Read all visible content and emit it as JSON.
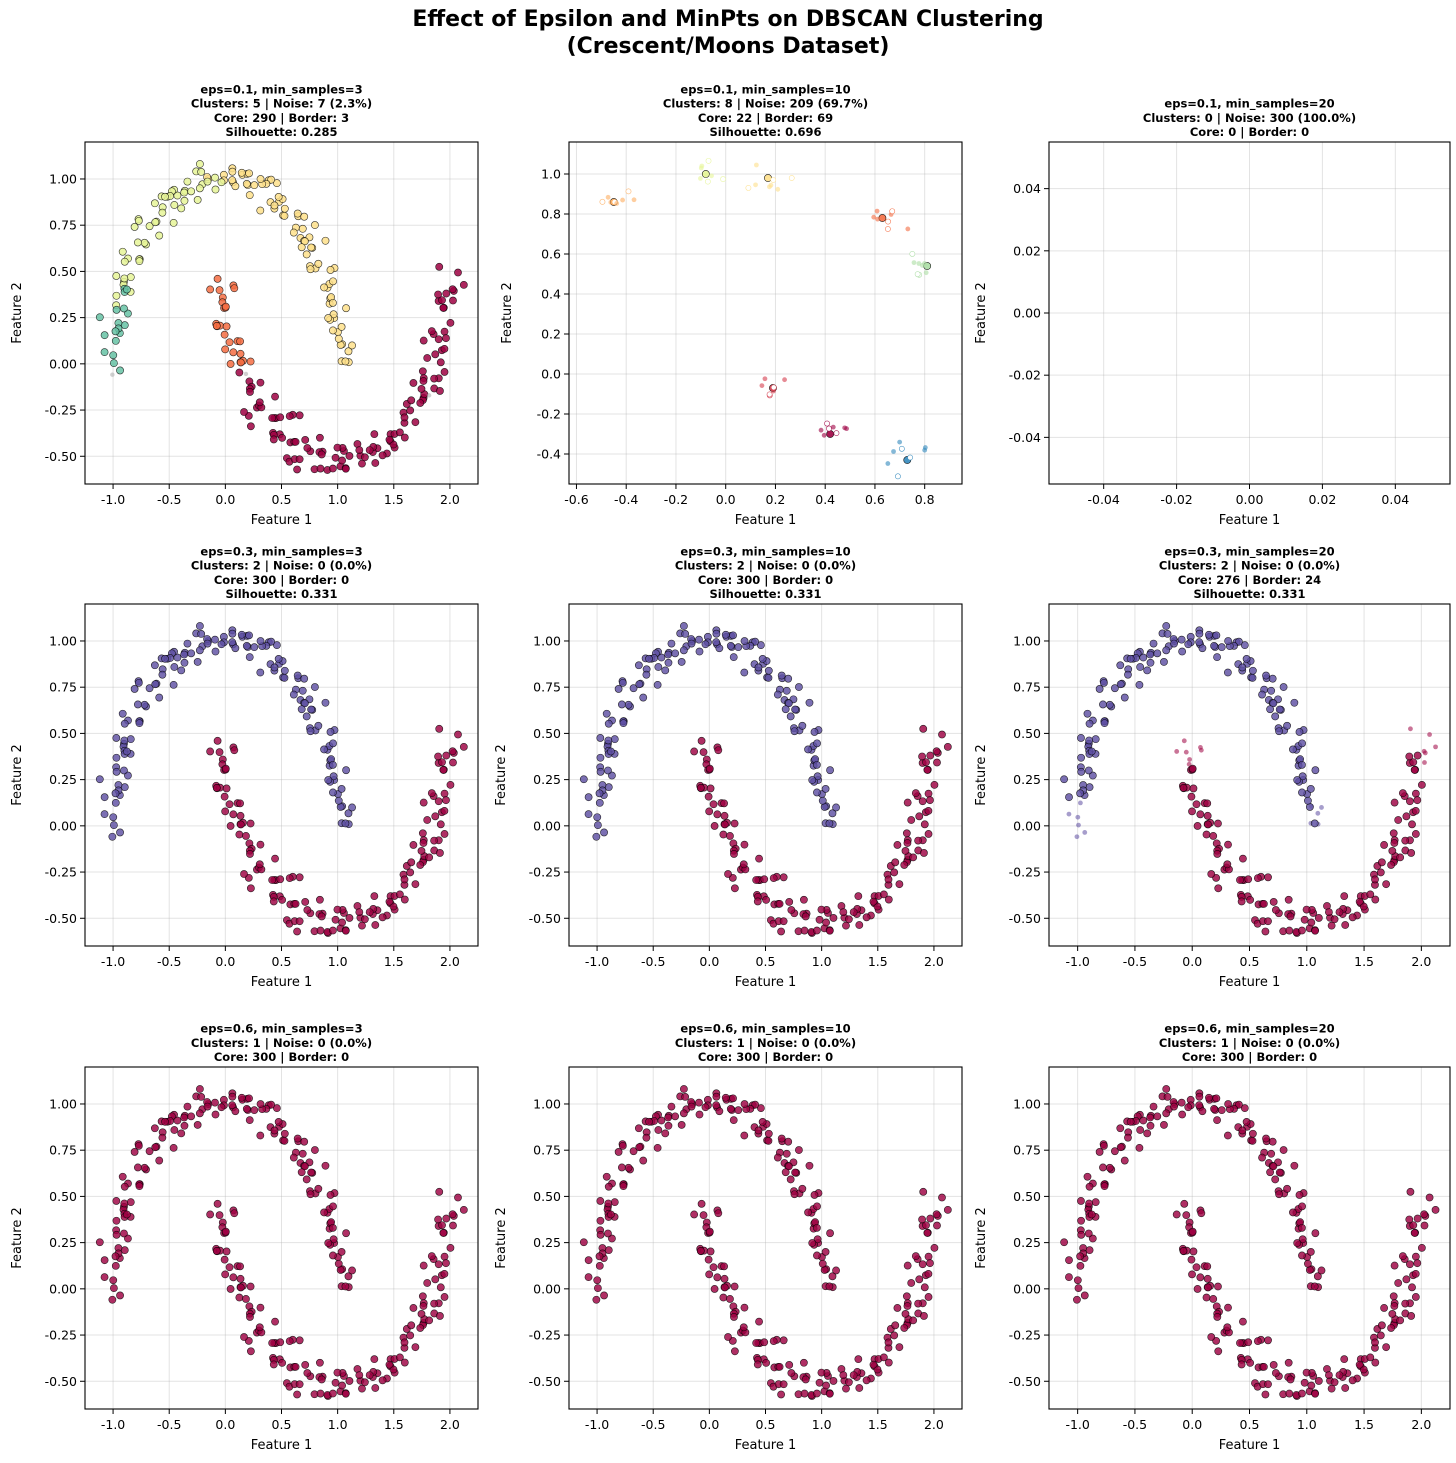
{
  "figure": {
    "title_lines": [
      "Effect of Epsilon and MinPts on DBSCAN Clustering",
      "(Crescent/Moons Dataset)"
    ]
  },
  "colors": {
    "two_cluster_upper": "#5e4fa2",
    "two_cluster_lower": "#9e0142",
    "single_cluster": "#9e0142",
    "five_cluster_palette": [
      "#9e0142",
      "#f46d43",
      "#fee08b",
      "#e6f598",
      "#66c2a5"
    ],
    "eight_cluster_palette": [
      "#9e0142",
      "#d53e4f",
      "#fdae61",
      "#fee08b",
      "#e6f598",
      "#abdda4",
      "#66c2a5",
      "#3288bd"
    ]
  },
  "chart_data": [
    {
      "type": "scatter",
      "title_lines": [
        "eps=0.1, min_samples=3",
        "Clusters: 5 | Noise: 7 (2.3%)",
        "Core: 290 | Border: 3",
        "Silhouette: 0.285"
      ],
      "eps": 0.1,
      "min_samples": 3,
      "clusters": 5,
      "noise": 7,
      "noise_pct": 2.3,
      "core": 290,
      "border": 3,
      "silhouette": 0.285,
      "xlabel": "Feature 1",
      "ylabel": "Feature 2",
      "xlim": [
        -1.25,
        2.25
      ],
      "ylim": [
        -0.65,
        1.2
      ],
      "xticks": [
        "-1.0",
        "-0.5",
        "0.0",
        "0.5",
        "1.0",
        "1.5",
        "2.0"
      ],
      "yticks": [
        "-0.50",
        "-0.25",
        "0.00",
        "0.25",
        "0.50",
        "0.75",
        "1.00"
      ],
      "mode": "full"
    },
    {
      "type": "scatter",
      "title_lines": [
        "eps=0.1, min_samples=10",
        "Clusters: 8 | Noise: 209 (69.7%)",
        "Core: 22 | Border: 69",
        "Silhouette: 0.696"
      ],
      "eps": 0.1,
      "min_samples": 10,
      "clusters": 8,
      "noise": 209,
      "noise_pct": 69.7,
      "core": 22,
      "border": 69,
      "silhouette": 0.696,
      "xlabel": "Feature 1",
      "ylabel": "Feature 2",
      "xlim": [
        -0.63,
        0.95
      ],
      "ylim": [
        -0.55,
        1.16
      ],
      "xticks": [
        "-0.6",
        "-0.4",
        "-0.2",
        "0.0",
        "0.2",
        "0.4",
        "0.6",
        "0.8"
      ],
      "yticks": [
        "-0.4",
        "-0.2",
        "0.0",
        "0.2",
        "0.4",
        "0.6",
        "0.8",
        "1.0"
      ],
      "mode": "clusters8"
    },
    {
      "type": "scatter",
      "title_lines": [
        "eps=0.1, min_samples=20",
        "Clusters: 0 | Noise: 300 (100.0%)",
        "Core: 0 | Border: 0"
      ],
      "eps": 0.1,
      "min_samples": 20,
      "clusters": 0,
      "noise": 300,
      "noise_pct": 100.0,
      "core": 0,
      "border": 0,
      "xlabel": "Feature 1",
      "ylabel": "Feature 2",
      "xlim": [
        -0.055,
        0.055
      ],
      "ylim": [
        -0.055,
        0.055
      ],
      "xticks": [
        "-0.04",
        "-0.02",
        "0.00",
        "0.02",
        "0.04"
      ],
      "yticks": [
        "-0.04",
        "-0.02",
        "0.00",
        "0.02",
        "0.04"
      ],
      "mode": "empty"
    },
    {
      "type": "scatter",
      "title_lines": [
        "eps=0.3, min_samples=3",
        "Clusters: 2 | Noise: 0 (0.0%)",
        "Core: 300 | Border: 0",
        "Silhouette: 0.331"
      ],
      "eps": 0.3,
      "min_samples": 3,
      "clusters": 2,
      "noise": 0,
      "noise_pct": 0.0,
      "core": 300,
      "border": 0,
      "silhouette": 0.331,
      "xlabel": "Feature 1",
      "ylabel": "Feature 2",
      "xlim": [
        -1.25,
        2.25
      ],
      "ylim": [
        -0.65,
        1.2
      ],
      "xticks": [
        "-1.0",
        "-0.5",
        "0.0",
        "0.5",
        "1.0",
        "1.5",
        "2.0"
      ],
      "yticks": [
        "-0.50",
        "-0.25",
        "0.00",
        "0.25",
        "0.50",
        "0.75",
        "1.00"
      ],
      "mode": "two"
    },
    {
      "type": "scatter",
      "title_lines": [
        "eps=0.3, min_samples=10",
        "Clusters: 2 | Noise: 0 (0.0%)",
        "Core: 300 | Border: 0",
        "Silhouette: 0.331"
      ],
      "eps": 0.3,
      "min_samples": 10,
      "clusters": 2,
      "noise": 0,
      "noise_pct": 0.0,
      "core": 300,
      "border": 0,
      "silhouette": 0.331,
      "xlabel": "Feature 1",
      "ylabel": "Feature 2",
      "xlim": [
        -1.25,
        2.25
      ],
      "ylim": [
        -0.65,
        1.2
      ],
      "xticks": [
        "-1.0",
        "-0.5",
        "0.0",
        "0.5",
        "1.0",
        "1.5",
        "2.0"
      ],
      "yticks": [
        "-0.50",
        "-0.25",
        "0.00",
        "0.25",
        "0.50",
        "0.75",
        "1.00"
      ],
      "mode": "two"
    },
    {
      "type": "scatter",
      "title_lines": [
        "eps=0.3, min_samples=20",
        "Clusters: 2 | Noise: 0 (0.0%)",
        "Core: 276 | Border: 24",
        "Silhouette: 0.331"
      ],
      "eps": 0.3,
      "min_samples": 20,
      "clusters": 2,
      "noise": 0,
      "noise_pct": 0.0,
      "core": 276,
      "border": 24,
      "silhouette": 0.331,
      "xlabel": "Feature 1",
      "ylabel": "Feature 2",
      "xlim": [
        -1.25,
        2.25
      ],
      "ylim": [
        -0.65,
        1.2
      ],
      "xticks": [
        "-1.0",
        "-0.5",
        "0.0",
        "0.5",
        "1.0",
        "1.5",
        "2.0"
      ],
      "yticks": [
        "-0.50",
        "-0.25",
        "0.00",
        "0.25",
        "0.50",
        "0.75",
        "1.00"
      ],
      "mode": "two_border"
    },
    {
      "type": "scatter",
      "title_lines": [
        "eps=0.6, min_samples=3",
        "Clusters: 1 | Noise: 0 (0.0%)",
        "Core: 300 | Border: 0"
      ],
      "eps": 0.6,
      "min_samples": 3,
      "clusters": 1,
      "noise": 0,
      "noise_pct": 0.0,
      "core": 300,
      "border": 0,
      "xlabel": "Feature 1",
      "ylabel": "Feature 2",
      "xlim": [
        -1.25,
        2.25
      ],
      "ylim": [
        -0.65,
        1.2
      ],
      "xticks": [
        "-1.0",
        "-0.5",
        "0.0",
        "0.5",
        "1.0",
        "1.5",
        "2.0"
      ],
      "yticks": [
        "-0.50",
        "-0.25",
        "0.00",
        "0.25",
        "0.50",
        "0.75",
        "1.00"
      ],
      "mode": "one"
    },
    {
      "type": "scatter",
      "title_lines": [
        "eps=0.6, min_samples=10",
        "Clusters: 1 | Noise: 0 (0.0%)",
        "Core: 300 | Border: 0"
      ],
      "eps": 0.6,
      "min_samples": 10,
      "clusters": 1,
      "noise": 0,
      "noise_pct": 0.0,
      "core": 300,
      "border": 0,
      "xlabel": "Feature 1",
      "ylabel": "Feature 2",
      "xlim": [
        -1.25,
        2.25
      ],
      "ylim": [
        -0.65,
        1.2
      ],
      "xticks": [
        "-1.0",
        "-0.5",
        "0.0",
        "0.5",
        "1.0",
        "1.5",
        "2.0"
      ],
      "yticks": [
        "-0.50",
        "-0.25",
        "0.00",
        "0.25",
        "0.50",
        "0.75",
        "1.00"
      ],
      "mode": "one"
    },
    {
      "type": "scatter",
      "title_lines": [
        "eps=0.6, min_samples=20",
        "Clusters: 1 | Noise: 0 (0.0%)",
        "Core: 300 | Border: 0"
      ],
      "eps": 0.6,
      "min_samples": 20,
      "clusters": 1,
      "noise": 0,
      "noise_pct": 0.0,
      "core": 300,
      "border": 0,
      "xlabel": "Feature 1",
      "ylabel": "Feature 2",
      "xlim": [
        -1.25,
        2.25
      ],
      "ylim": [
        -0.65,
        1.2
      ],
      "xticks": [
        "-1.0",
        "-0.5",
        "0.0",
        "0.5",
        "1.0",
        "1.5",
        "2.0"
      ],
      "yticks": [
        "-0.50",
        "-0.25",
        "0.00",
        "0.25",
        "0.50",
        "0.75",
        "1.00"
      ],
      "mode": "one"
    }
  ]
}
